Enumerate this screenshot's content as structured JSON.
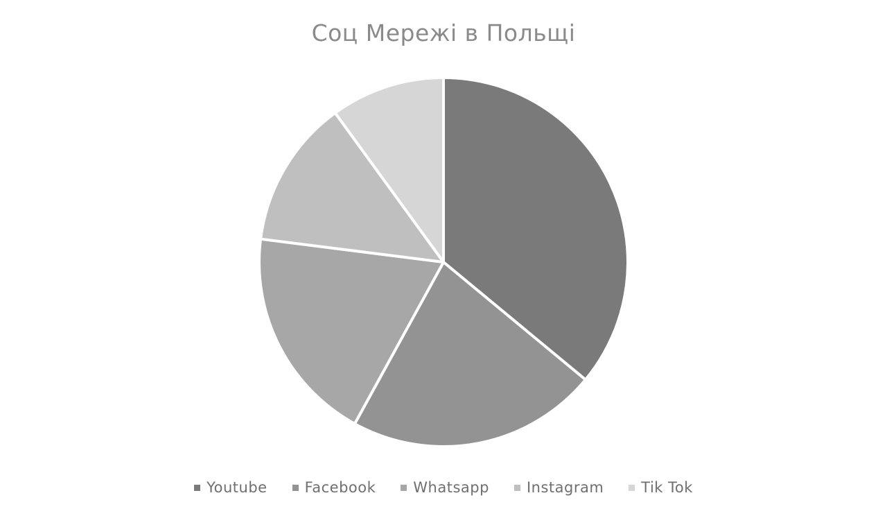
{
  "chart_data": {
    "type": "pie",
    "title": "Соц Мережі в Польщі",
    "categories": [
      "Youtube",
      "Facebook",
      "Whatsapp",
      "Instagram",
      "Tik Tok"
    ],
    "values": [
      36,
      22,
      19,
      13,
      10
    ],
    "colors": [
      "#7a7a7a",
      "#939393",
      "#a7a7a7",
      "#bfbfbf",
      "#d6d6d6"
    ],
    "legend_position": "bottom",
    "start_angle_deg": 0,
    "direction": "clockwise"
  }
}
